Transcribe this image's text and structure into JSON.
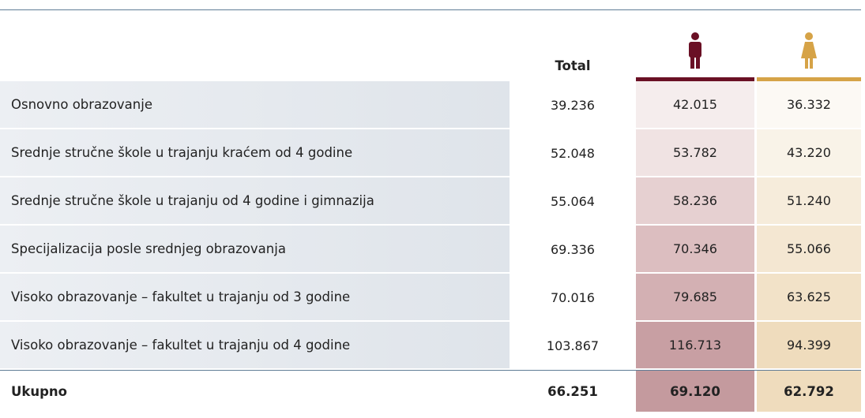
{
  "table": {
    "header": {
      "total": "Total"
    },
    "rows": [
      [
        "Osnovno obrazovanje",
        "39.236",
        "42.015",
        "36.332"
      ],
      [
        "Srednje stručne škole u trajanju kraćem od 4 godine",
        "52.048",
        "53.782",
        "43.220"
      ],
      [
        "Srednje stručne škole u trajanju od 4 godine i gimnazija",
        "55.064",
        "58.236",
        "51.240"
      ],
      [
        "Specijalizacija posle srednjeg obrazovanja",
        "69.336",
        "70.346",
        "55.066"
      ],
      [
        "Visoko obrazovanje – fakultet u trajanju od 3 godine",
        "70.016",
        "79.685",
        "63.625"
      ],
      [
        "Visoko obrazovanje – fakultet u trajanju od 4 godine",
        "103.867",
        "116.713",
        "94.399"
      ]
    ],
    "footer": [
      "Ukupno",
      "66.251",
      "69.120",
      "62.792"
    ]
  }
}
